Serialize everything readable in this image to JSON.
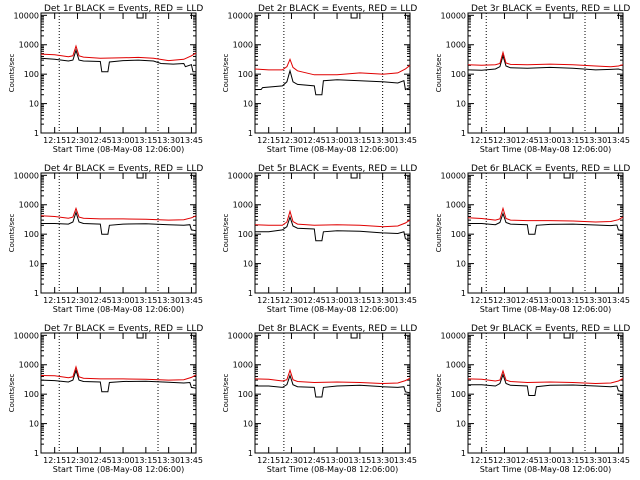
{
  "chart_data": [
    {
      "type": "line",
      "title": "Det 1r BLACK = Events, RED = LLD",
      "xlabel": "Start Time (08-May-08 12:06:00)",
      "ylabel": "Counts/sec",
      "yscale": "log",
      "ylim": [
        1,
        12000
      ],
      "xlim": [
        "12:06",
        "13:48"
      ],
      "x_ticks": [
        "12:15",
        "12:30",
        "12:45",
        "13:00",
        "13:15",
        "13:30",
        "13:45"
      ],
      "y_ticks": [
        "1",
        "10",
        "100",
        "1000",
        "10000"
      ],
      "dotted_vlines": [
        "12:18",
        "13:23"
      ],
      "grid": false,
      "series": [
        {
          "name": "Events",
          "color": "#000000",
          "x": [
            "12:06",
            "12:15",
            "12:24",
            "12:27",
            "12:29",
            "12:31",
            "12:34",
            "12:45",
            "12:46",
            "12:50",
            "12:51",
            "13:00",
            "13:10",
            "13:20",
            "13:25",
            "13:33",
            "13:40",
            "13:41",
            "13:45",
            "13:46",
            "13:48"
          ],
          "values": [
            350,
            320,
            280,
            300,
            650,
            300,
            280,
            270,
            120,
            120,
            260,
            290,
            300,
            280,
            230,
            220,
            230,
            180,
            210,
            120,
            120
          ]
        },
        {
          "name": "LLD",
          "color": "#e00000",
          "x": [
            "12:06",
            "12:15",
            "12:24",
            "12:27",
            "12:29",
            "12:31",
            "12:34",
            "12:45",
            "13:00",
            "13:10",
            "13:20",
            "13:30",
            "13:40",
            "13:45",
            "13:48"
          ],
          "values": [
            480,
            460,
            390,
            420,
            900,
            420,
            380,
            350,
            360,
            370,
            350,
            290,
            320,
            420,
            520
          ]
        }
      ]
    },
    {
      "type": "line",
      "title": "Det 2r BLACK = Events, RED = LLD",
      "xlabel": "Start Time (08-May-08 12:06:00)",
      "ylabel": "Counts/sec",
      "yscale": "log",
      "ylim": [
        1,
        12000
      ],
      "xlim": [
        "12:06",
        "13:48"
      ],
      "x_ticks": [
        "12:15",
        "12:30",
        "12:45",
        "13:00",
        "13:15",
        "13:30",
        "13:45"
      ],
      "y_ticks": [
        "1",
        "10",
        "100",
        "1000",
        "10000"
      ],
      "dotted_vlines": [
        "12:25",
        "13:30"
      ],
      "grid": false,
      "series": [
        {
          "name": "Events",
          "color": "#000000",
          "x": [
            "12:06",
            "12:10",
            "12:11",
            "12:24",
            "12:27",
            "12:29",
            "12:31",
            "12:34",
            "12:45",
            "12:46",
            "12:50",
            "12:51",
            "13:00",
            "13:15",
            "13:30",
            "13:40",
            "13:44",
            "13:45",
            "13:48"
          ],
          "values": [
            30,
            30,
            35,
            40,
            55,
            130,
            55,
            45,
            40,
            20,
            20,
            60,
            65,
            60,
            55,
            50,
            60,
            30,
            35
          ]
        },
        {
          "name": "LLD",
          "color": "#e00000",
          "x": [
            "12:06",
            "12:15",
            "12:24",
            "12:27",
            "12:29",
            "12:31",
            "12:34",
            "12:45",
            "13:00",
            "13:15",
            "13:30",
            "13:40",
            "13:45",
            "13:48"
          ],
          "values": [
            150,
            140,
            140,
            180,
            320,
            170,
            130,
            95,
            95,
            110,
            100,
            110,
            150,
            200
          ]
        }
      ]
    },
    {
      "type": "line",
      "title": "Det 3r BLACK = Events, RED = LLD",
      "xlabel": "Start Time (08-May-08 12:06:00)",
      "ylabel": "Counts/sec",
      "yscale": "log",
      "ylim": [
        1,
        12000
      ],
      "xlim": [
        "12:06",
        "13:48"
      ],
      "x_ticks": [
        "12:15",
        "12:30",
        "12:45",
        "13:00",
        "13:15",
        "13:30",
        "13:45"
      ],
      "y_ticks": [
        "1",
        "10",
        "100",
        "1000",
        "10000"
      ],
      "dotted_vlines": [
        "12:18",
        "13:23"
      ],
      "grid": false,
      "series": [
        {
          "name": "Events",
          "color": "#000000",
          "x": [
            "12:06",
            "12:15",
            "12:24",
            "12:27",
            "12:29",
            "12:31",
            "12:34",
            "12:45",
            "13:00",
            "13:15",
            "13:30",
            "13:40",
            "13:45",
            "13:48"
          ],
          "values": [
            140,
            135,
            150,
            180,
            420,
            190,
            165,
            160,
            170,
            160,
            140,
            145,
            150,
            135
          ]
        },
        {
          "name": "LLD",
          "color": "#e00000",
          "x": [
            "12:06",
            "12:15",
            "12:24",
            "12:27",
            "12:29",
            "12:31",
            "12:34",
            "12:45",
            "13:00",
            "13:15",
            "13:30",
            "13:40",
            "13:45",
            "13:48"
          ],
          "values": [
            210,
            200,
            210,
            230,
            550,
            240,
            215,
            210,
            220,
            210,
            190,
            180,
            190,
            210
          ]
        }
      ]
    },
    {
      "type": "line",
      "title": "Det 4r BLACK = Events, RED = LLD",
      "xlabel": "Start Time (08-May-08 12:06:00)",
      "ylabel": "Counts/sec",
      "yscale": "log",
      "ylim": [
        1,
        12000
      ],
      "xlim": [
        "12:06",
        "13:48"
      ],
      "x_ticks": [
        "12:15",
        "12:30",
        "12:45",
        "13:00",
        "13:15",
        "13:30",
        "13:45"
      ],
      "y_ticks": [
        "1",
        "10",
        "100",
        "1000",
        "10000"
      ],
      "dotted_vlines": [
        "12:18",
        "13:23"
      ],
      "grid": false,
      "series": [
        {
          "name": "Events",
          "color": "#000000",
          "x": [
            "12:06",
            "12:15",
            "12:24",
            "12:27",
            "12:29",
            "12:31",
            "12:34",
            "12:45",
            "12:46",
            "12:50",
            "12:51",
            "13:00",
            "13:15",
            "13:30",
            "13:40",
            "13:44",
            "13:45",
            "13:48"
          ],
          "values": [
            230,
            230,
            220,
            260,
            550,
            260,
            230,
            220,
            100,
            100,
            200,
            220,
            225,
            210,
            200,
            210,
            140,
            130
          ]
        },
        {
          "name": "LLD",
          "color": "#e00000",
          "x": [
            "12:06",
            "12:15",
            "12:24",
            "12:27",
            "12:29",
            "12:31",
            "12:34",
            "12:45",
            "13:00",
            "13:15",
            "13:30",
            "13:40",
            "13:45",
            "13:48"
          ],
          "values": [
            420,
            400,
            350,
            380,
            750,
            380,
            350,
            330,
            330,
            320,
            300,
            310,
            360,
            420
          ]
        }
      ]
    },
    {
      "type": "line",
      "title": "Det 5r BLACK = Events, RED = LLD",
      "xlabel": "Start Time (08-May-08 12:06:00)",
      "ylabel": "Counts/sec",
      "yscale": "log",
      "ylim": [
        1,
        12000
      ],
      "xlim": [
        "12:06",
        "13:48"
      ],
      "x_ticks": [
        "12:15",
        "12:30",
        "12:45",
        "13:00",
        "13:15",
        "13:30",
        "13:45"
      ],
      "y_ticks": [
        "1",
        "10",
        "100",
        "1000",
        "10000"
      ],
      "dotted_vlines": [
        "12:25",
        "13:30"
      ],
      "grid": false,
      "series": [
        {
          "name": "Events",
          "color": "#000000",
          "x": [
            "12:06",
            "12:15",
            "12:24",
            "12:27",
            "12:29",
            "12:31",
            "12:34",
            "12:45",
            "12:46",
            "12:50",
            "12:51",
            "13:00",
            "13:15",
            "13:30",
            "13:40",
            "13:44",
            "13:45",
            "13:48"
          ],
          "values": [
            120,
            120,
            140,
            180,
            380,
            190,
            160,
            150,
            60,
            60,
            120,
            130,
            125,
            110,
            105,
            120,
            70,
            60
          ]
        },
        {
          "name": "LLD",
          "color": "#e00000",
          "x": [
            "12:06",
            "12:15",
            "12:24",
            "12:27",
            "12:29",
            "12:31",
            "12:34",
            "12:45",
            "13:00",
            "13:15",
            "13:30",
            "13:40",
            "13:45",
            "13:48"
          ],
          "values": [
            210,
            200,
            200,
            260,
            600,
            270,
            220,
            200,
            210,
            200,
            180,
            190,
            240,
            300
          ]
        }
      ]
    },
    {
      "type": "line",
      "title": "Det 6r BLACK = Events, RED = LLD",
      "xlabel": "Start Time (08-May-08 12:06:00)",
      "ylabel": "Counts/sec",
      "yscale": "log",
      "ylim": [
        1,
        12000
      ],
      "xlim": [
        "12:06",
        "13:48"
      ],
      "x_ticks": [
        "12:15",
        "12:30",
        "12:45",
        "13:00",
        "13:15",
        "13:30",
        "13:45"
      ],
      "y_ticks": [
        "1",
        "10",
        "100",
        "1000",
        "10000"
      ],
      "dotted_vlines": [
        "12:18",
        "13:23"
      ],
      "grid": false,
      "series": [
        {
          "name": "Events",
          "color": "#000000",
          "x": [
            "12:06",
            "12:15",
            "12:24",
            "12:27",
            "12:29",
            "12:31",
            "12:34",
            "12:45",
            "12:46",
            "12:50",
            "12:51",
            "13:00",
            "13:15",
            "13:30",
            "13:40",
            "13:44",
            "13:45",
            "13:48"
          ],
          "values": [
            230,
            230,
            210,
            250,
            500,
            250,
            220,
            210,
            100,
            100,
            200,
            215,
            220,
            205,
            195,
            205,
            140,
            130
          ]
        },
        {
          "name": "LLD",
          "color": "#e00000",
          "x": [
            "12:06",
            "12:15",
            "12:24",
            "12:27",
            "12:29",
            "12:31",
            "12:34",
            "12:45",
            "13:00",
            "13:15",
            "13:30",
            "13:40",
            "13:45",
            "13:48"
          ],
          "values": [
            360,
            340,
            300,
            330,
            750,
            340,
            300,
            290,
            290,
            280,
            260,
            270,
            310,
            380
          ]
        }
      ]
    },
    {
      "type": "line",
      "title": "Det 7r BLACK = Events, RED = LLD",
      "xlabel": "Start Time (08-May-08 12:06:00)",
      "ylabel": "Counts/sec",
      "yscale": "log",
      "ylim": [
        1,
        12000
      ],
      "xlim": [
        "12:06",
        "13:48"
      ],
      "x_ticks": [
        "12:15",
        "12:30",
        "12:45",
        "13:00",
        "13:15",
        "13:30",
        "13:45"
      ],
      "y_ticks": [
        "1",
        "10",
        "100",
        "1000",
        "10000"
      ],
      "dotted_vlines": [
        "12:18",
        "13:23"
      ],
      "grid": false,
      "series": [
        {
          "name": "Events",
          "color": "#000000",
          "x": [
            "12:06",
            "12:15",
            "12:24",
            "12:27",
            "12:29",
            "12:31",
            "12:34",
            "12:45",
            "12:46",
            "12:50",
            "12:51",
            "13:00",
            "13:15",
            "13:30",
            "13:40",
            "13:44",
            "13:45",
            "13:48"
          ],
          "values": [
            300,
            290,
            260,
            300,
            650,
            300,
            270,
            260,
            120,
            120,
            250,
            270,
            275,
            255,
            240,
            250,
            170,
            160
          ]
        },
        {
          "name": "LLD",
          "color": "#e00000",
          "x": [
            "12:06",
            "12:15",
            "12:24",
            "12:27",
            "12:29",
            "12:31",
            "12:34",
            "12:45",
            "13:00",
            "13:15",
            "13:30",
            "13:40",
            "13:45",
            "13:48"
          ],
          "values": [
            430,
            420,
            360,
            390,
            850,
            390,
            350,
            330,
            330,
            320,
            300,
            310,
            370,
            450
          ]
        }
      ]
    },
    {
      "type": "line",
      "title": "Det 8r BLACK = Events, RED = LLD",
      "xlabel": "Start Time (08-May-08 12:06:00)",
      "ylabel": "Counts/sec",
      "yscale": "log",
      "ylim": [
        1,
        12000
      ],
      "xlim": [
        "12:06",
        "13:48"
      ],
      "x_ticks": [
        "12:15",
        "12:30",
        "12:45",
        "13:00",
        "13:15",
        "13:30",
        "13:45"
      ],
      "y_ticks": [
        "1",
        "10",
        "100",
        "1000",
        "10000"
      ],
      "dotted_vlines": [
        "12:25",
        "13:30"
      ],
      "grid": false,
      "series": [
        {
          "name": "Events",
          "color": "#000000",
          "x": [
            "12:06",
            "12:15",
            "12:24",
            "12:27",
            "12:29",
            "12:31",
            "12:34",
            "12:45",
            "12:46",
            "12:50",
            "12:51",
            "13:00",
            "13:15",
            "13:30",
            "13:40",
            "13:44",
            "13:45",
            "13:48"
          ],
          "values": [
            190,
            190,
            170,
            210,
            430,
            210,
            180,
            170,
            80,
            80,
            170,
            190,
            200,
            180,
            170,
            180,
            120,
            110
          ]
        },
        {
          "name": "LLD",
          "color": "#e00000",
          "x": [
            "12:06",
            "12:15",
            "12:24",
            "12:27",
            "12:29",
            "12:31",
            "12:34",
            "12:45",
            "13:00",
            "13:15",
            "13:30",
            "13:40",
            "13:45",
            "13:48"
          ],
          "values": [
            330,
            320,
            280,
            310,
            650,
            310,
            270,
            250,
            260,
            250,
            230,
            240,
            290,
            350
          ]
        }
      ]
    },
    {
      "type": "line",
      "title": "Det 9r BLACK = Events, RED = LLD",
      "xlabel": "Start Time (08-May-08 12:06:00)",
      "ylabel": "Counts/sec",
      "yscale": "log",
      "ylim": [
        1,
        12000
      ],
      "xlim": [
        "12:06",
        "13:48"
      ],
      "x_ticks": [
        "12:15",
        "12:30",
        "12:45",
        "13:00",
        "13:15",
        "13:30",
        "13:45"
      ],
      "y_ticks": [
        "1",
        "10",
        "100",
        "1000",
        "10000"
      ],
      "dotted_vlines": [
        "12:18",
        "13:23"
      ],
      "grid": false,
      "series": [
        {
          "name": "Events",
          "color": "#000000",
          "x": [
            "12:06",
            "12:15",
            "12:24",
            "12:27",
            "12:29",
            "12:31",
            "12:34",
            "12:45",
            "12:46",
            "12:50",
            "12:51",
            "13:00",
            "13:15",
            "13:30",
            "13:40",
            "13:44",
            "13:45",
            "13:48"
          ],
          "values": [
            210,
            210,
            190,
            230,
            460,
            230,
            200,
            190,
            90,
            90,
            180,
            200,
            205,
            190,
            180,
            190,
            130,
            120
          ]
        },
        {
          "name": "LLD",
          "color": "#e00000",
          "x": [
            "12:06",
            "12:15",
            "12:24",
            "12:27",
            "12:29",
            "12:31",
            "12:34",
            "12:45",
            "13:00",
            "13:15",
            "13:30",
            "13:40",
            "13:45",
            "13:48"
          ],
          "values": [
            330,
            320,
            280,
            300,
            620,
            300,
            270,
            250,
            260,
            250,
            230,
            240,
            280,
            340
          ]
        }
      ]
    }
  ]
}
